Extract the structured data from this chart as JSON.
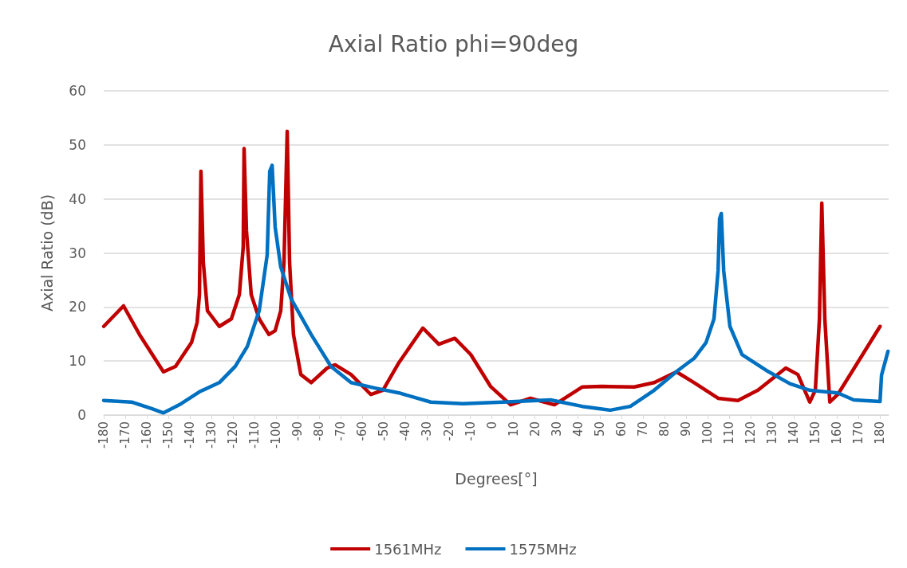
{
  "chart_data": {
    "type": "line",
    "title": "Axial Ratio phi=90deg",
    "xlabel": "Degrees[°]",
    "ylabel": "Axial Ratio (dB)",
    "xlim": [
      -180,
      184
    ],
    "xticks": [
      -180,
      -170,
      -160,
      -150,
      -140,
      -130,
      -120,
      -110,
      -100,
      -90,
      -80,
      -70,
      -60,
      -50,
      -40,
      -30,
      -20,
      -10,
      0,
      10,
      20,
      30,
      40,
      50,
      60,
      70,
      80,
      90,
      100,
      110,
      120,
      130,
      140,
      150,
      160,
      170,
      180
    ],
    "ylim": [
      0,
      60
    ],
    "yticks": [
      0,
      10,
      20,
      30,
      40,
      50,
      60
    ],
    "grid": "y",
    "legend": "bottom",
    "marker": "none",
    "line_style": "solid",
    "series": [
      {
        "name": "1561MHz",
        "color": "#c00000",
        "x": [
          -180,
          -170.8,
          -163.4,
          -152.3,
          -146.7,
          -139.3,
          -136.7,
          -135.6,
          -134.9,
          -133.8,
          -131.9,
          -126.4,
          -120.8,
          -117.1,
          -115.3,
          -114.9,
          -113.8,
          -111.6,
          -107.9,
          -103.4,
          -100.5,
          -97.9,
          -96.4,
          -94.9,
          -93.8,
          -92,
          -88.6,
          -83.8,
          -76.4,
          -72.7,
          -65.3,
          -56.1,
          -50.5,
          -43.1,
          -32,
          -24.6,
          -17.2,
          -9.8,
          -0.6,
          8.7,
          17.9,
          29,
          42,
          51.2,
          66,
          75.3,
          85.6,
          93.8,
          104.9,
          114.1,
          123.4,
          136.3,
          141.9,
          147.4,
          150,
          151.9,
          153,
          154.4,
          156.7,
          160.4,
          169.6,
          180
        ],
        "values": [
          16.4,
          20.2,
          14.9,
          8,
          9,
          13.4,
          17.1,
          22.3,
          45.1,
          28.2,
          19.3,
          16.4,
          17.8,
          22.3,
          31.1,
          49.3,
          34.1,
          22.3,
          17.8,
          14.9,
          15.6,
          19.3,
          28.2,
          52.5,
          28.2,
          14.9,
          7.5,
          6,
          8.7,
          9.3,
          7.5,
          3.8,
          4.6,
          9.7,
          16.1,
          13.1,
          14.2,
          11.2,
          5.3,
          1.9,
          3.1,
          1.9,
          5.2,
          5.3,
          5.2,
          6,
          8,
          6,
          3.1,
          2.7,
          4.6,
          8.7,
          7.5,
          2.4,
          4.6,
          17.8,
          39.2,
          17.8,
          2.4,
          3.8,
          9.7,
          16.4
        ]
      },
      {
        "name": "1575MHz",
        "color": "#0070c0",
        "x": [
          -180,
          -167.1,
          -157.8,
          -152.3,
          -144.9,
          -135.6,
          -126.4,
          -119,
          -113.4,
          -107.9,
          -104.2,
          -103,
          -101.9,
          -100.5,
          -97.9,
          -93.1,
          -83.8,
          -74.6,
          -65.3,
          -54.2,
          -43.1,
          -28.3,
          -13.5,
          5,
          27.2,
          42,
          54.9,
          64.2,
          75.3,
          86.4,
          93.8,
          99.3,
          103,
          104.9,
          105.6,
          106.4,
          107.5,
          110.4,
          116,
          127.1,
          138.2,
          147.4,
          160.4,
          167.8,
          180,
          180.7,
          183.7
        ],
        "values": [
          2.7,
          2.4,
          1.2,
          0.4,
          1.9,
          4.3,
          6,
          9,
          12.7,
          19.3,
          29.6,
          45.1,
          46.2,
          34.8,
          27.4,
          21.5,
          14.9,
          9,
          6,
          5,
          4.1,
          2.4,
          2.1,
          2.4,
          2.8,
          1.6,
          0.9,
          1.6,
          4.6,
          8.3,
          10.5,
          13.4,
          17.8,
          26.7,
          36.3,
          37.3,
          26.7,
          16.4,
          11.2,
          8.3,
          5.8,
          4.6,
          4.1,
          2.8,
          2.5,
          7.4,
          11.8
        ]
      }
    ]
  }
}
